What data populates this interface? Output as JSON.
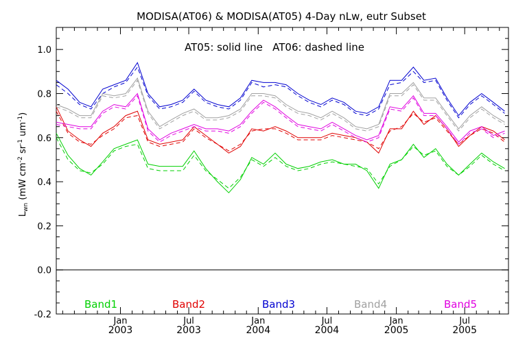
{
  "chart_data": {
    "type": "line",
    "title": "MODISA(AT06) & MODISA(AT05) 4-Day nLw, eutr Subset",
    "annotation": "AT05: solid line   AT06: dashed line",
    "ylabel_main": "L",
    "ylabel_sub": "wn",
    "ylabel_units": " (mW cm",
    "ylabel_sup1": "-2",
    "ylabel_mid": " sr",
    "ylabel_sup2": "-1",
    "ylabel_mid2": " um",
    "ylabel_sup3": "-1",
    "ylabel_end": ")",
    "ylim": [
      -0.2,
      1.1
    ],
    "xlim": [
      "2002-07-15",
      "2005-10-25"
    ],
    "yticks": [
      "-0.2",
      "0.0",
      "0.2",
      "0.4",
      "0.6",
      "0.8",
      "1.0"
    ],
    "xticks": [
      {
        "date": "2003-01-01",
        "month": "Jan",
        "year": "2003"
      },
      {
        "date": "2003-07-01",
        "month": "Jul",
        "year": "2003"
      },
      {
        "date": "2004-01-01",
        "month": "Jan",
        "year": "2004"
      },
      {
        "date": "2004-07-01",
        "month": "Jul",
        "year": "2004"
      },
      {
        "date": "2005-01-01",
        "month": "Jan",
        "year": "2005"
      },
      {
        "date": "2005-07-01",
        "month": "Jul",
        "year": "2005"
      }
    ],
    "zero_line": 0.0,
    "dates": [
      "2002-07-15",
      "2002-08-15",
      "2002-09-15",
      "2002-10-15",
      "2002-11-15",
      "2002-12-15",
      "2003-01-15",
      "2003-02-15",
      "2003-03-15",
      "2003-04-15",
      "2003-05-15",
      "2003-06-15",
      "2003-07-15",
      "2003-08-15",
      "2003-09-15",
      "2003-10-15",
      "2003-11-15",
      "2003-12-15",
      "2004-01-15",
      "2004-02-15",
      "2004-03-15",
      "2004-04-15",
      "2004-05-15",
      "2004-06-15",
      "2004-07-15",
      "2004-08-15",
      "2004-09-15",
      "2004-10-15",
      "2004-11-15",
      "2004-12-15",
      "2005-01-15",
      "2005-02-15",
      "2005-03-15",
      "2005-04-15",
      "2005-05-15",
      "2005-06-15",
      "2005-07-15",
      "2005-08-15",
      "2005-09-15",
      "2005-10-15"
    ],
    "series": [
      {
        "name": "Band1",
        "color": "#00d000",
        "solid": [
          0.62,
          0.52,
          0.46,
          0.43,
          0.49,
          0.55,
          0.57,
          0.59,
          0.48,
          0.47,
          0.47,
          0.47,
          0.54,
          0.46,
          0.4,
          0.35,
          0.41,
          0.51,
          0.48,
          0.53,
          0.48,
          0.46,
          0.47,
          0.49,
          0.5,
          0.48,
          0.48,
          0.45,
          0.37,
          0.48,
          0.5,
          0.57,
          0.51,
          0.55,
          0.48,
          0.43,
          0.48,
          0.53,
          0.49,
          0.46
        ],
        "dashed": [
          0.6,
          0.5,
          0.45,
          0.44,
          0.48,
          0.54,
          0.56,
          0.57,
          0.46,
          0.45,
          0.45,
          0.45,
          0.52,
          0.45,
          0.41,
          0.37,
          0.42,
          0.5,
          0.47,
          0.51,
          0.47,
          0.45,
          0.46,
          0.48,
          0.49,
          0.48,
          0.47,
          0.46,
          0.39,
          0.47,
          0.5,
          0.56,
          0.52,
          0.54,
          0.47,
          0.43,
          0.47,
          0.52,
          0.48,
          0.45
        ]
      },
      {
        "name": "Band2",
        "color": "#e00000",
        "solid": [
          0.74,
          0.63,
          0.59,
          0.56,
          0.62,
          0.65,
          0.7,
          0.72,
          0.59,
          0.57,
          0.58,
          0.59,
          0.65,
          0.61,
          0.57,
          0.53,
          0.56,
          0.64,
          0.63,
          0.65,
          0.63,
          0.6,
          0.6,
          0.6,
          0.62,
          0.61,
          0.6,
          0.58,
          0.53,
          0.64,
          0.64,
          0.72,
          0.66,
          0.7,
          0.64,
          0.56,
          0.61,
          0.65,
          0.63,
          0.59
        ],
        "dashed": [
          0.72,
          0.62,
          0.58,
          0.57,
          0.61,
          0.64,
          0.69,
          0.7,
          0.58,
          0.56,
          0.57,
          0.58,
          0.64,
          0.6,
          0.57,
          0.54,
          0.57,
          0.63,
          0.64,
          0.64,
          0.62,
          0.59,
          0.59,
          0.59,
          0.61,
          0.6,
          0.59,
          0.58,
          0.55,
          0.63,
          0.65,
          0.71,
          0.67,
          0.69,
          0.63,
          0.57,
          0.61,
          0.64,
          0.62,
          0.58
        ]
      },
      {
        "name": "Band3",
        "color": "#0000d0",
        "solid": [
          0.86,
          0.82,
          0.76,
          0.74,
          0.82,
          0.84,
          0.86,
          0.94,
          0.8,
          0.74,
          0.75,
          0.77,
          0.82,
          0.77,
          0.75,
          0.74,
          0.78,
          0.86,
          0.85,
          0.85,
          0.84,
          0.8,
          0.77,
          0.75,
          0.78,
          0.76,
          0.72,
          0.71,
          0.74,
          0.86,
          0.86,
          0.92,
          0.86,
          0.87,
          0.78,
          0.7,
          0.76,
          0.8,
          0.76,
          0.72
        ],
        "dashed": [
          0.84,
          0.8,
          0.75,
          0.73,
          0.8,
          0.83,
          0.85,
          0.92,
          0.79,
          0.73,
          0.74,
          0.76,
          0.81,
          0.76,
          0.74,
          0.73,
          0.77,
          0.85,
          0.83,
          0.84,
          0.83,
          0.79,
          0.76,
          0.74,
          0.77,
          0.75,
          0.71,
          0.7,
          0.73,
          0.84,
          0.85,
          0.9,
          0.85,
          0.86,
          0.77,
          0.69,
          0.75,
          0.79,
          0.75,
          0.71
        ]
      },
      {
        "name": "Band4",
        "color": "#a0a0a0",
        "solid": [
          0.75,
          0.73,
          0.7,
          0.7,
          0.8,
          0.79,
          0.8,
          0.87,
          0.72,
          0.65,
          0.68,
          0.71,
          0.73,
          0.69,
          0.69,
          0.7,
          0.73,
          0.8,
          0.8,
          0.79,
          0.75,
          0.72,
          0.71,
          0.69,
          0.72,
          0.69,
          0.65,
          0.64,
          0.66,
          0.8,
          0.8,
          0.85,
          0.78,
          0.78,
          0.71,
          0.64,
          0.7,
          0.74,
          0.7,
          0.67
        ],
        "dashed": [
          0.74,
          0.72,
          0.69,
          0.69,
          0.79,
          0.78,
          0.79,
          0.86,
          0.71,
          0.64,
          0.67,
          0.7,
          0.72,
          0.68,
          0.68,
          0.69,
          0.72,
          0.79,
          0.79,
          0.78,
          0.74,
          0.71,
          0.7,
          0.68,
          0.71,
          0.68,
          0.64,
          0.63,
          0.65,
          0.79,
          0.79,
          0.84,
          0.77,
          0.77,
          0.7,
          0.63,
          0.69,
          0.73,
          0.69,
          0.66
        ]
      },
      {
        "name": "Band5",
        "color": "#e000e0",
        "solid": [
          0.67,
          0.66,
          0.65,
          0.65,
          0.72,
          0.75,
          0.74,
          0.8,
          0.64,
          0.59,
          0.62,
          0.64,
          0.66,
          0.64,
          0.64,
          0.63,
          0.66,
          0.72,
          0.77,
          0.74,
          0.7,
          0.66,
          0.65,
          0.64,
          0.67,
          0.64,
          0.61,
          0.59,
          0.61,
          0.74,
          0.73,
          0.79,
          0.71,
          0.71,
          0.65,
          0.58,
          0.63,
          0.65,
          0.61,
          0.63
        ],
        "dashed": [
          0.66,
          0.65,
          0.64,
          0.64,
          0.71,
          0.74,
          0.73,
          0.79,
          0.63,
          0.58,
          0.61,
          0.63,
          0.65,
          0.63,
          0.63,
          0.62,
          0.65,
          0.71,
          0.76,
          0.73,
          0.69,
          0.65,
          0.64,
          0.63,
          0.66,
          0.63,
          0.6,
          0.58,
          0.6,
          0.73,
          0.72,
          0.78,
          0.7,
          0.7,
          0.64,
          0.57,
          0.62,
          0.64,
          0.6,
          0.62
        ]
      }
    ]
  }
}
